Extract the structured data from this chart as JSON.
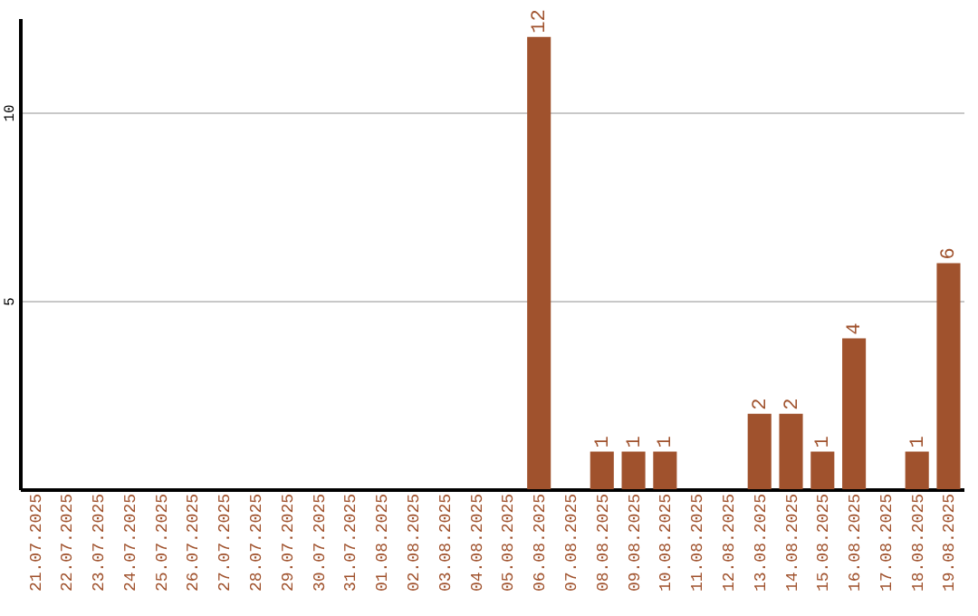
{
  "chart_data": {
    "type": "bar",
    "categories": [
      "21.07.2025",
      "22.07.2025",
      "23.07.2025",
      "24.07.2025",
      "25.07.2025",
      "26.07.2025",
      "27.07.2025",
      "28.07.2025",
      "29.07.2025",
      "30.07.2025",
      "31.07.2025",
      "01.08.2025",
      "02.08.2025",
      "03.08.2025",
      "04.08.2025",
      "05.08.2025",
      "06.08.2025",
      "07.08.2025",
      "08.08.2025",
      "09.08.2025",
      "10.08.2025",
      "11.08.2025",
      "12.08.2025",
      "13.08.2025",
      "14.08.2025",
      "15.08.2025",
      "16.08.2025",
      "17.08.2025",
      "18.08.2025",
      "19.08.2025"
    ],
    "values": [
      0,
      0,
      0,
      0,
      0,
      0,
      0,
      0,
      0,
      0,
      0,
      0,
      0,
      0,
      0,
      0,
      12,
      0,
      1,
      1,
      1,
      0,
      0,
      2,
      2,
      1,
      4,
      0,
      1,
      6
    ],
    "value_labels": [
      null,
      null,
      null,
      null,
      null,
      null,
      null,
      null,
      null,
      null,
      null,
      null,
      null,
      null,
      null,
      null,
      "12",
      null,
      "1",
      "1",
      "1",
      null,
      null,
      "2",
      "2",
      "1",
      "4",
      null,
      "1",
      "6"
    ],
    "color": "#a0522d",
    "ylim": [
      0,
      12.5
    ],
    "yticks": [
      5,
      10
    ],
    "grid": "y"
  }
}
